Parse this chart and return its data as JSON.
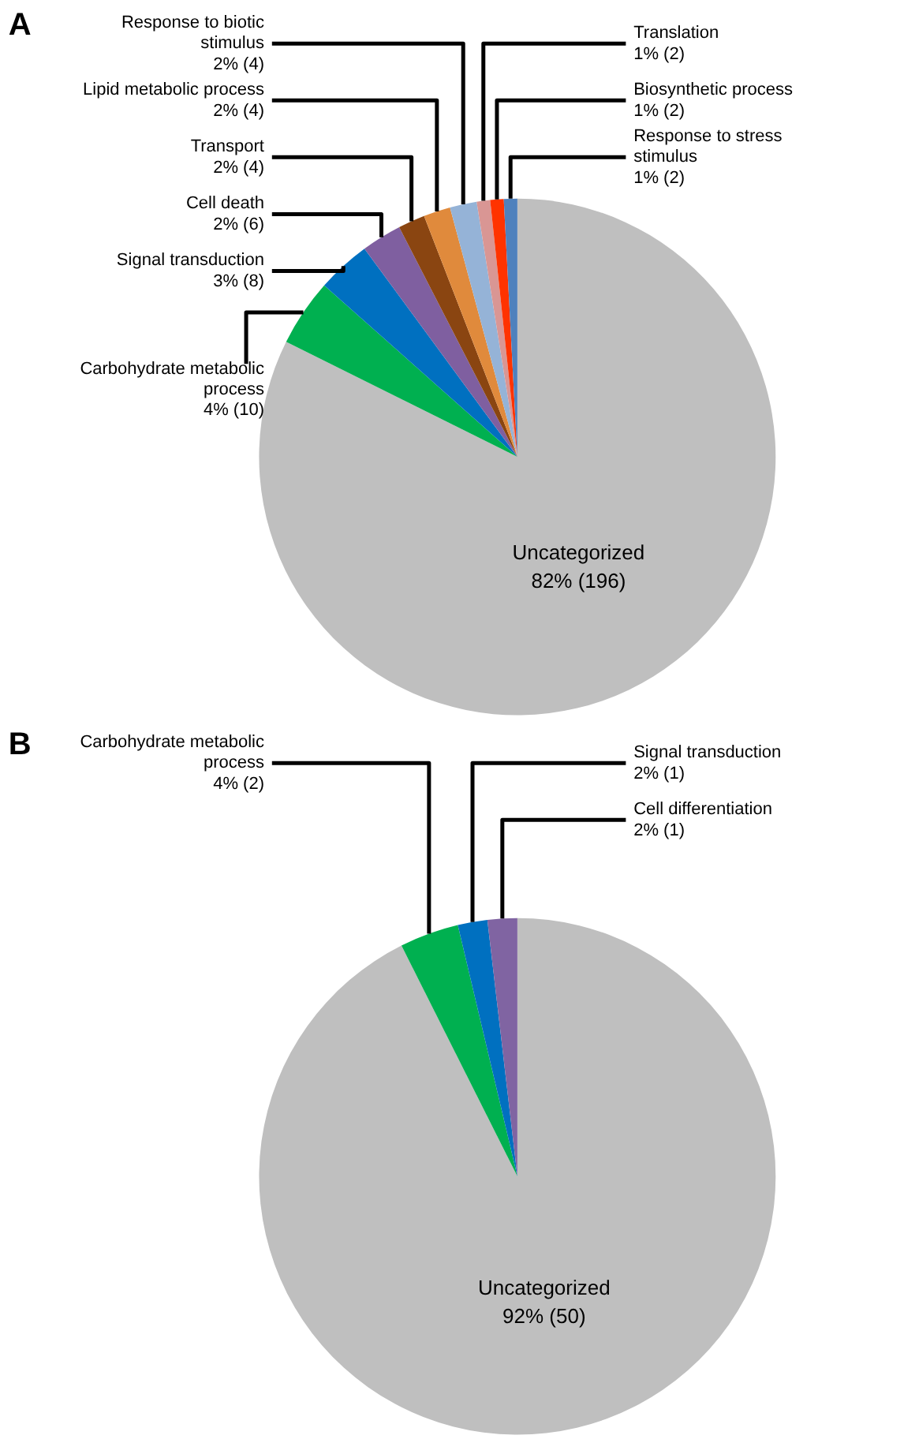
{
  "chart_data": [
    {
      "type": "pie",
      "title": "A",
      "categories": [
        "Uncategorized",
        "Carbohydrate metabolic process",
        "Signal transduction",
        "Cell death",
        "Transport",
        "Lipid metabolic process",
        "Response to biotic stimulus",
        "Translation",
        "Biosynthetic process",
        "Response to stress stimulus"
      ],
      "values": [
        196,
        10,
        8,
        6,
        4,
        4,
        4,
        2,
        2,
        2
      ],
      "value_labels": [
        "82% (196)",
        "4% (10)",
        "3% (8)",
        "2% (6)",
        "2% (4)",
        "2% (4)",
        "2% (4)",
        "1% (2)",
        "1% (2)",
        "1% (2)"
      ],
      "colors": [
        "#bfbfbf",
        "#00b050",
        "#0070c0",
        "#7f5fa0",
        "#8a4511",
        "#e08a3c",
        "#95b3d7",
        "#d99694",
        "#ff3300",
        "#4f81bd"
      ]
    },
    {
      "type": "pie",
      "title": "B",
      "categories": [
        "Uncategorized",
        "Carbohydrate metabolic process",
        "Signal transduction",
        "Cell differentiation"
      ],
      "values": [
        50,
        2,
        1,
        1
      ],
      "value_labels": [
        "92% (50)",
        "4% (2)",
        "2% (1)",
        "2% (1)"
      ],
      "colors": [
        "#bfbfbf",
        "#00b050",
        "#0070c0",
        "#8064a2"
      ]
    }
  ]
}
